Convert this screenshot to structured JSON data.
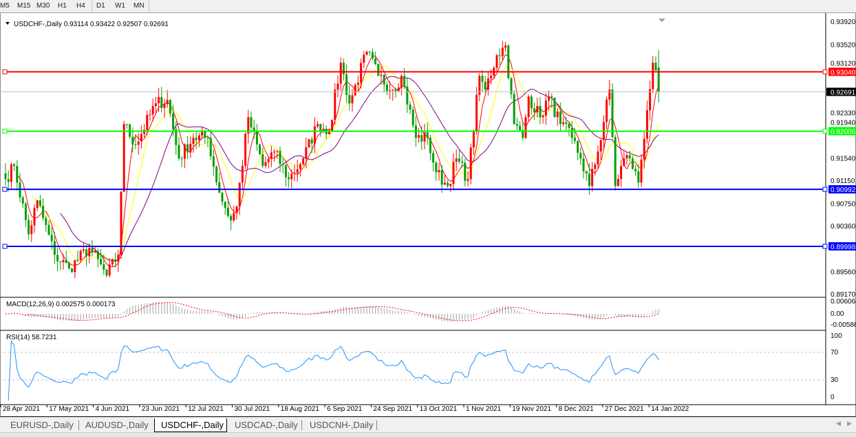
{
  "timeframes": [
    "M5",
    "M15",
    "M30",
    "H1",
    "H4",
    "D1",
    "W1",
    "MN"
  ],
  "active_timeframe": "D1",
  "chart": {
    "header": "USDCHF-,Daily  0.93114 0.93422 0.92507 0.92691",
    "price_axis": [
      "0.93920",
      "0.93520",
      "0.93120",
      "0.92330",
      "0.91940",
      "0.91540",
      "0.91150",
      "0.90750",
      "0.90360",
      "0.89560",
      "0.89170"
    ],
    "levels": [
      {
        "price": 0.9304,
        "label": "0.93040",
        "color": "#ff0000"
      },
      {
        "price": 0.92006,
        "label": "0.92006",
        "color": "#00ff00"
      },
      {
        "price": 0.90992,
        "label": "0.90992",
        "color": "#0000ff"
      },
      {
        "price": 0.89998,
        "label": "0.89998",
        "color": "#0000ff"
      }
    ],
    "current_price": {
      "price": 0.92691,
      "label": "0.92691"
    },
    "macd": {
      "label": "MACD(12,26,9) 0.002575 0.000173",
      "axis": [
        "0.006068",
        "0.00",
        "-0.00586"
      ]
    },
    "rsi": {
      "label": "RSI(14) 58.7231",
      "axis": [
        "100",
        "70",
        "30",
        "0"
      ]
    },
    "date_axis": [
      "28 Apr 2021",
      "17 May 2021",
      "4 Jun 2021",
      "23 Jun 2021",
      "12 Jul 2021",
      "30 Jul 2021",
      "18 Aug 2021",
      "6 Sep 2021",
      "24 Sep 2021",
      "13 Oct 2021",
      "1 Nov 2021",
      "19 Nov 2021",
      "8 Dec 2021",
      "27 Dec 2021",
      "14 Jan 2022"
    ],
    "colors": {
      "bull": "#ff0000",
      "bear": "#00a000",
      "ma_fast": "#ff0000",
      "ma_mid": "#ffff00",
      "ma_slow": "#800080",
      "rsi": "#1e90ff",
      "macd_signal": "#ff0000"
    }
  },
  "chart_data": {
    "type": "candlestick",
    "symbol": "USDCHF-",
    "timeframe": "Daily",
    "ohlc_last": [
      0.93114,
      0.93422,
      0.92507,
      0.92691
    ],
    "ylim": [
      0.8917,
      0.9392
    ],
    "close_keypoints": [
      {
        "bar": 0,
        "close": 0.9117
      },
      {
        "bar": 3,
        "close": 0.914
      },
      {
        "bar": 8,
        "close": 0.9021
      },
      {
        "bar": 11,
        "close": 0.908
      },
      {
        "bar": 17,
        "close": 0.8985
      },
      {
        "bar": 22,
        "close": 0.8961
      },
      {
        "bar": 29,
        "close": 0.8997
      },
      {
        "bar": 35,
        "close": 0.8949
      },
      {
        "bar": 39,
        "close": 0.8985
      },
      {
        "bar": 41,
        "close": 0.9213
      },
      {
        "bar": 45,
        "close": 0.9177
      },
      {
        "bar": 52,
        "close": 0.9249
      },
      {
        "bar": 56,
        "close": 0.9255
      },
      {
        "bar": 60,
        "close": 0.9153
      },
      {
        "bar": 65,
        "close": 0.9189
      },
      {
        "bar": 70,
        "close": 0.9189
      },
      {
        "bar": 74,
        "close": 0.9093
      },
      {
        "bar": 78,
        "close": 0.9045
      },
      {
        "bar": 80,
        "close": 0.9069
      },
      {
        "bar": 84,
        "close": 0.9225
      },
      {
        "bar": 89,
        "close": 0.914
      },
      {
        "bar": 93,
        "close": 0.9165
      },
      {
        "bar": 98,
        "close": 0.9117
      },
      {
        "bar": 103,
        "close": 0.9153
      },
      {
        "bar": 108,
        "close": 0.9213
      },
      {
        "bar": 112,
        "close": 0.9201
      },
      {
        "bar": 116,
        "close": 0.932
      },
      {
        "bar": 119,
        "close": 0.9249
      },
      {
        "bar": 125,
        "close": 0.9339
      },
      {
        "bar": 129,
        "close": 0.9297
      },
      {
        "bar": 134,
        "close": 0.9273
      },
      {
        "bar": 137,
        "close": 0.9297
      },
      {
        "bar": 142,
        "close": 0.9189
      },
      {
        "bar": 146,
        "close": 0.9189
      },
      {
        "bar": 149,
        "close": 0.9129
      },
      {
        "bar": 153,
        "close": 0.9105
      },
      {
        "bar": 156,
        "close": 0.9153
      },
      {
        "bar": 160,
        "close": 0.9117
      },
      {
        "bar": 164,
        "close": 0.9297
      },
      {
        "bar": 166,
        "close": 0.9273
      },
      {
        "bar": 170,
        "close": 0.9333
      },
      {
        "bar": 173,
        "close": 0.935
      },
      {
        "bar": 176,
        "close": 0.9213
      },
      {
        "bar": 179,
        "close": 0.9189
      },
      {
        "bar": 181,
        "close": 0.9261
      },
      {
        "bar": 185,
        "close": 0.9225
      },
      {
        "bar": 188,
        "close": 0.9261
      },
      {
        "bar": 192,
        "close": 0.9213
      },
      {
        "bar": 196,
        "close": 0.9189
      },
      {
        "bar": 199,
        "close": 0.9153
      },
      {
        "bar": 202,
        "close": 0.9105
      },
      {
        "bar": 205,
        "close": 0.9165
      },
      {
        "bar": 209,
        "close": 0.9273
      },
      {
        "bar": 211,
        "close": 0.9105
      },
      {
        "bar": 214,
        "close": 0.9153
      },
      {
        "bar": 216,
        "close": 0.9153
      },
      {
        "bar": 219,
        "close": 0.9111
      },
      {
        "bar": 222,
        "close": 0.9237
      },
      {
        "bar": 224,
        "close": 0.932
      },
      {
        "bar": 226,
        "close": 0.92691
      }
    ]
  },
  "tabs": [
    "EURUSD-,Daily",
    "AUDUSD-,Daily",
    "USDCHF-,Daily",
    "USDCAD-,Daily",
    "USDCNH-,Daily"
  ],
  "active_tab": "USDCHF-,Daily"
}
